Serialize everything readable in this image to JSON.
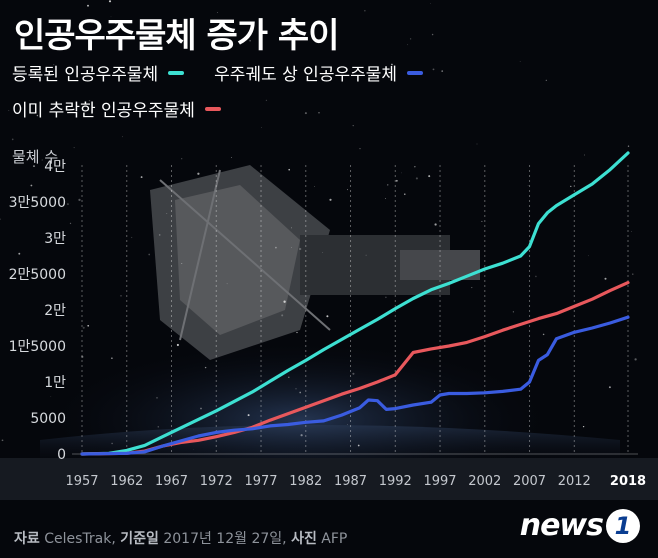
{
  "title": "인공우주물체 증가 추이",
  "legend": [
    {
      "label": "등록된 인공우주물체",
      "color": "#3de0d2"
    },
    {
      "label": "우주궤도 상 인공우주물체",
      "color": "#3a5ce0"
    },
    {
      "label": "이미 추락한 인공우주물체",
      "color": "#e8585c"
    }
  ],
  "footer": {
    "source_label": "자료",
    "source_value": "CelesTrak",
    "date_label": "기준일",
    "date_value": "2017년 12월 27일",
    "photo_label": "사진",
    "photo_value": "AFP"
  },
  "logo": {
    "text": "news",
    "badge": "1"
  },
  "chart_data": {
    "type": "line",
    "ylabel": "물체 수",
    "ylim": [
      0,
      45000
    ],
    "yticks": [
      0,
      5000,
      10000,
      15000,
      20000,
      25000,
      30000,
      35000,
      40000
    ],
    "ytick_labels": [
      "0",
      "5000",
      "1만",
      "1만5000",
      "2만",
      "2만5000",
      "3만",
      "3만5000",
      "4만"
    ],
    "xlim": [
      1957,
      2018
    ],
    "xticks": [
      1957,
      1962,
      1967,
      1972,
      1977,
      1982,
      1987,
      1992,
      1997,
      2002,
      2007,
      2012,
      2018
    ],
    "xtick_labels": [
      "1957",
      "1962",
      "1967",
      "1972",
      "1977",
      "1982",
      "1987",
      "1992",
      "1997",
      "2002",
      "2007",
      "2012",
      "2018"
    ],
    "grid": "vertical dashed",
    "series": [
      {
        "name": "등록된 인공우주물체",
        "color": "#3de0d2",
        "x": [
          1957,
          1960,
          1962,
          1964,
          1966,
          1968,
          1970,
          1972,
          1974,
          1976,
          1978,
          1980,
          1982,
          1984,
          1986,
          1988,
          1990,
          1992,
          1994,
          1996,
          1998,
          2000,
          2002,
          2004,
          2006,
          2007,
          2008,
          2009,
          2010,
          2012,
          2014,
          2016,
          2018
        ],
        "y": [
          0,
          100,
          500,
          1200,
          2400,
          3600,
          4800,
          6000,
          7300,
          8600,
          10100,
          11600,
          13000,
          14500,
          15900,
          17300,
          18700,
          20200,
          21600,
          22800,
          23700,
          24700,
          25700,
          26500,
          27500,
          28800,
          32000,
          33500,
          34500,
          36000,
          37500,
          39500,
          41800
        ]
      },
      {
        "name": "이미 추락한 인공우주물체",
        "color": "#e8585c",
        "x": [
          1957,
          1962,
          1964,
          1966,
          1968,
          1970,
          1972,
          1974,
          1976,
          1978,
          1980,
          1982,
          1984,
          1986,
          1988,
          1990,
          1992,
          1994,
          1996,
          1998,
          2000,
          2002,
          2004,
          2006,
          2008,
          2010,
          2012,
          2014,
          2016,
          2018
        ],
        "y": [
          0,
          100,
          400,
          1100,
          1600,
          1900,
          2400,
          3000,
          3700,
          4700,
          5600,
          6500,
          7400,
          8300,
          9100,
          10000,
          11000,
          14100,
          14600,
          15000,
          15500,
          16300,
          17200,
          18000,
          18800,
          19500,
          20500,
          21500,
          22700,
          23800
        ]
      },
      {
        "name": "우주궤도 상 인공우주물체",
        "color": "#3a5ce0",
        "x": [
          1957,
          1962,
          1964,
          1966,
          1968,
          1970,
          1972,
          1974,
          1976,
          1978,
          1980,
          1982,
          1984,
          1986,
          1988,
          1989,
          1990,
          1991,
          1992,
          1994,
          1996,
          1997,
          1998,
          2000,
          2002,
          2004,
          2006,
          2007,
          2008,
          2009,
          2010,
          2012,
          2014,
          2016,
          2018
        ],
        "y": [
          0,
          100,
          300,
          1100,
          1800,
          2500,
          3000,
          3300,
          3500,
          3900,
          4100,
          4400,
          4600,
          5400,
          6400,
          7500,
          7400,
          6200,
          6300,
          6800,
          7200,
          8200,
          8400,
          8400,
          8500,
          8700,
          9000,
          10000,
          13000,
          13800,
          16000,
          16900,
          17500,
          18200,
          19000
        ]
      }
    ]
  }
}
